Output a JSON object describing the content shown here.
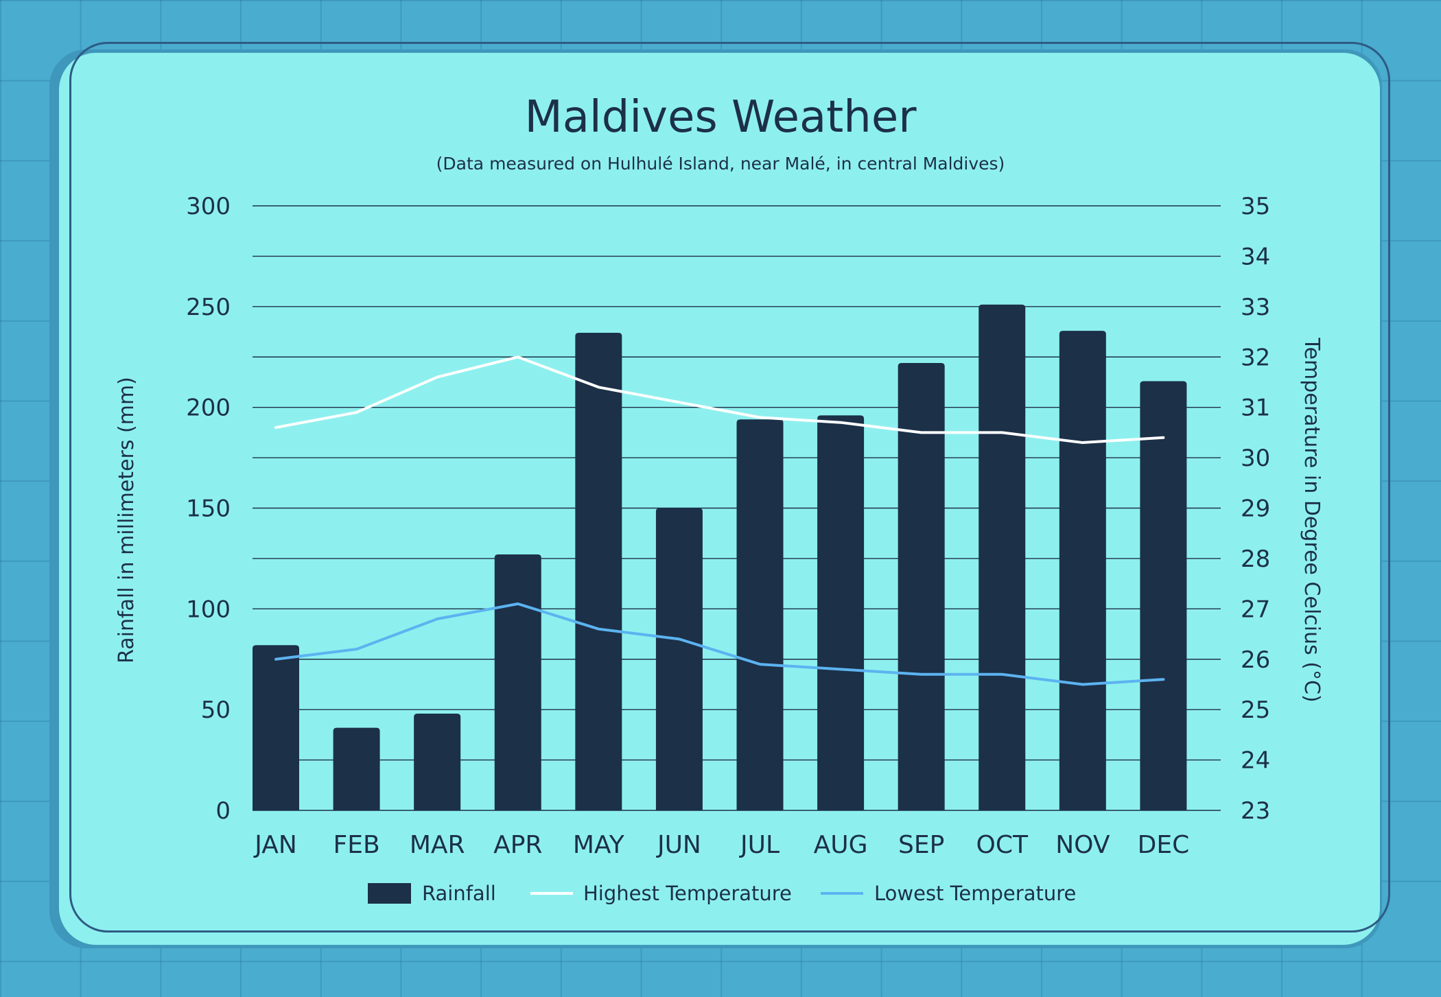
{
  "chart_data": {
    "type": "bar",
    "title": "Maldives Weather",
    "subtitle": "(Data measured on Hulhulé Island, near Malé, in central Maldives)",
    "categories": [
      "JAN",
      "FEB",
      "MAR",
      "APR",
      "MAY",
      "JUN",
      "JUL",
      "AUG",
      "SEP",
      "OCT",
      "NOV",
      "DEC"
    ],
    "ylabel_left": "Rainfall in millimeters (mm)",
    "ylabel_right": "Temperature in Degree Celcius (°C)",
    "ylim_left": [
      0,
      300
    ],
    "yticks_left": [
      0,
      50,
      100,
      150,
      200,
      250,
      300
    ],
    "ylim_right": [
      23,
      35
    ],
    "yticks_right": [
      23,
      24,
      25,
      26,
      27,
      28,
      29,
      30,
      31,
      32,
      33,
      34,
      35
    ],
    "grid": true,
    "legend_position": "bottom-center",
    "series": [
      {
        "name": "Rainfall",
        "kind": "bar",
        "axis": "left",
        "color": "#1c3048",
        "values": [
          82,
          41,
          48,
          127,
          237,
          150,
          194,
          196,
          222,
          251,
          238,
          213
        ]
      },
      {
        "name": "Highest Temperature",
        "kind": "line",
        "axis": "right",
        "color": "#ffffff",
        "values": [
          30.6,
          30.9,
          31.6,
          32.0,
          31.4,
          31.1,
          30.8,
          30.7,
          30.5,
          30.5,
          30.3,
          30.4
        ]
      },
      {
        "name": "Lowest Temperature",
        "kind": "line",
        "axis": "right",
        "color": "#5cb3f0",
        "values": [
          26.0,
          26.2,
          26.8,
          27.1,
          26.6,
          26.4,
          25.9,
          25.8,
          25.7,
          25.7,
          25.5,
          25.6
        ]
      }
    ]
  }
}
